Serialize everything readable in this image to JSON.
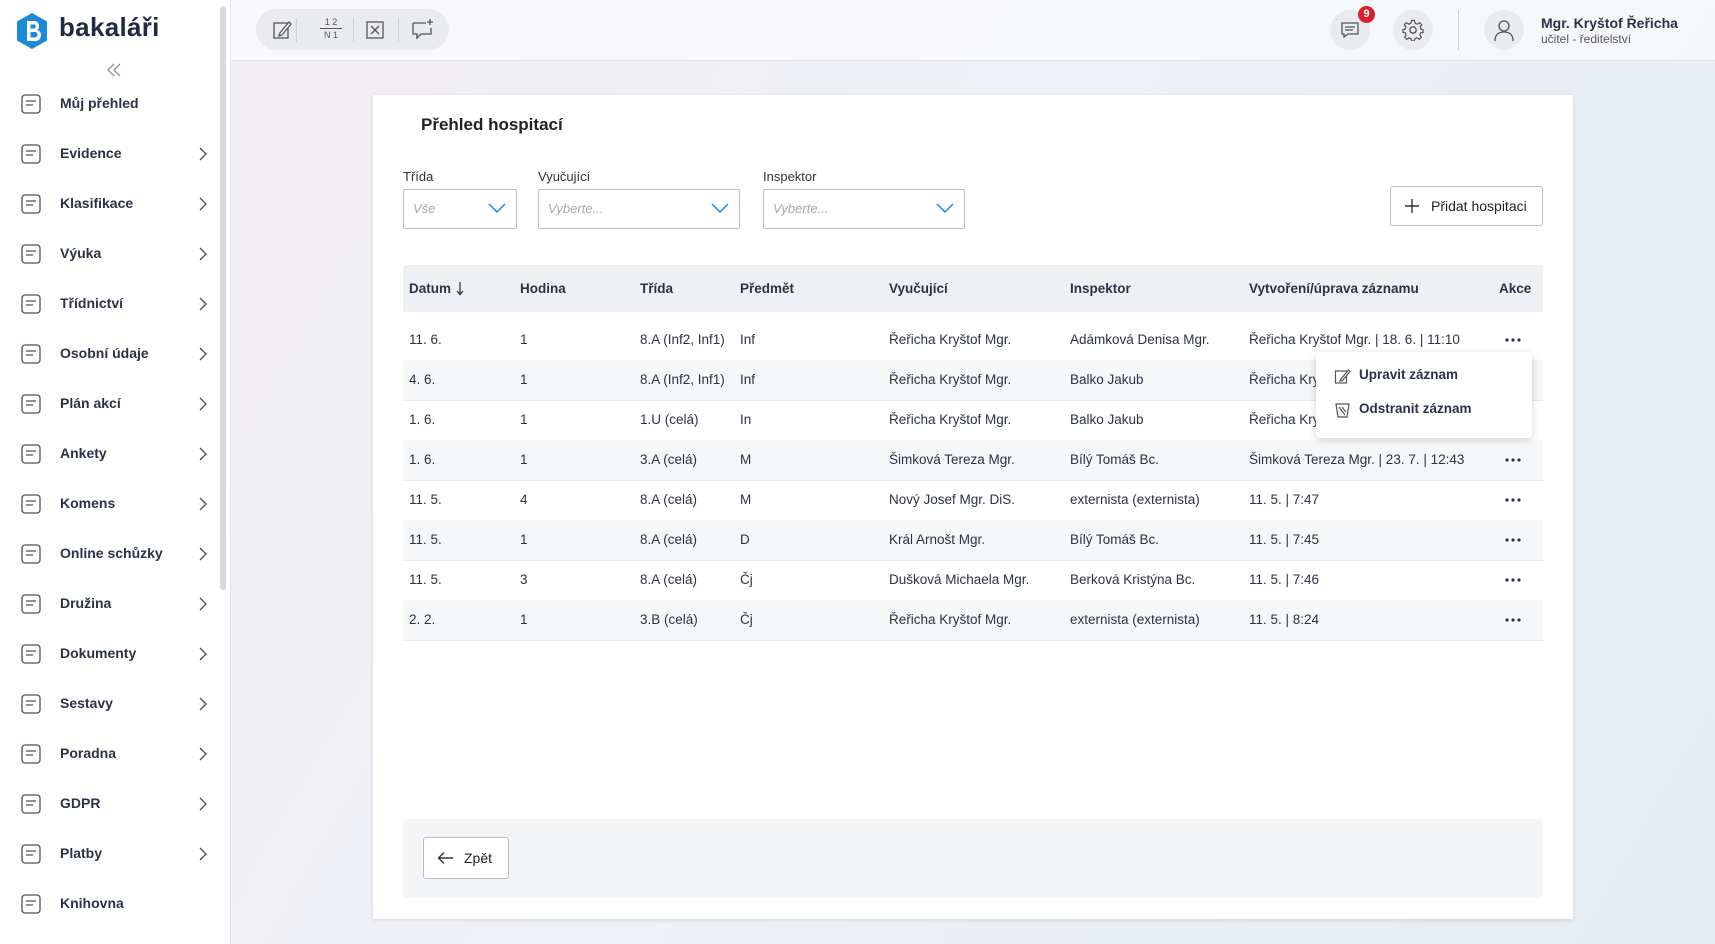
{
  "brand": "bakaláři",
  "sidebar": [
    "Můj přehled",
    "Evidence",
    "Klasifikace",
    "Výuka",
    "Třídnictví",
    "Osobní údaje",
    "Plán akcí",
    "Ankety",
    "Komens",
    "Online schůzky",
    "Družina",
    "Dokumenty",
    "Sestavy",
    "Poradna",
    "GDPR",
    "Platby",
    "Knihovna"
  ],
  "toolbar": {
    "grade_icon": [
      "1 2",
      "N 1"
    ]
  },
  "notifications": 9,
  "user": {
    "name": "Mgr. Kryštof Řeřicha",
    "role": "učitel - ředitelství"
  },
  "title": "Přehled hospitací",
  "filters": [
    {
      "label": "Třída",
      "placeholder": "Vše"
    },
    {
      "label": "Vyučující",
      "placeholder": "Vyberte..."
    },
    {
      "label": "Inspektor",
      "placeholder": "Vyberte..."
    }
  ],
  "add_button": "Přidat hospitaci",
  "table": {
    "headers": [
      "Datum",
      "Hodina",
      "Třída",
      "Předmět",
      "Vyučující",
      "Inspektor",
      "Vytvoření/úprava záznamu",
      "Akce"
    ],
    "rows": [
      [
        "11. 6.",
        "1",
        "8.A (Inf2, Inf1)",
        "Inf",
        "Řeřicha Kryštof Mgr.",
        "Adámková Denisa Mgr.",
        "Řeřicha Kryštof Mgr. | 18. 6. | 11:10"
      ],
      [
        "4. 6.",
        "1",
        "8.A (Inf2, Inf1)",
        "Inf",
        "Řeřicha Kryštof Mgr.",
        "Balko Jakub",
        "Řeřicha Kry"
      ],
      [
        "1. 6.",
        "1",
        "1.U (celá)",
        "In",
        "Řeřicha Kryštof Mgr.",
        "Balko Jakub",
        "Řeřicha Kry"
      ],
      [
        "1. 6.",
        "1",
        "3.A (celá)",
        "M",
        "Šimková Tereza Mgr.",
        "Bílý Tomáš Bc.",
        "Šimková Tereza Mgr. | 23. 7. | 12:43"
      ],
      [
        "11. 5.",
        "4",
        "8.A (celá)",
        "M",
        "Nový Josef Mgr. DiS.",
        "externista (externista)",
        "11. 5. | 7:47"
      ],
      [
        "11. 5.",
        "1",
        "8.A (celá)",
        "D",
        "Král Arnošt Mgr.",
        "Bílý Tomáš Bc.",
        "11. 5. | 7:45"
      ],
      [
        "11. 5.",
        "3",
        "8.A (celá)",
        "Čj",
        "Dušková Michaela Mgr.",
        "Berková Kristýna Bc.",
        "11. 5. | 7:46"
      ],
      [
        "2. 2.",
        "1",
        "3.B (celá)",
        "Čj",
        "Řeřicha Kryštof Mgr.",
        "externista (externista)",
        "11. 5. | 8:24"
      ]
    ]
  },
  "menu": [
    "Upravit záznam",
    "Odstranit záznam"
  ],
  "back_button": "Zpět"
}
